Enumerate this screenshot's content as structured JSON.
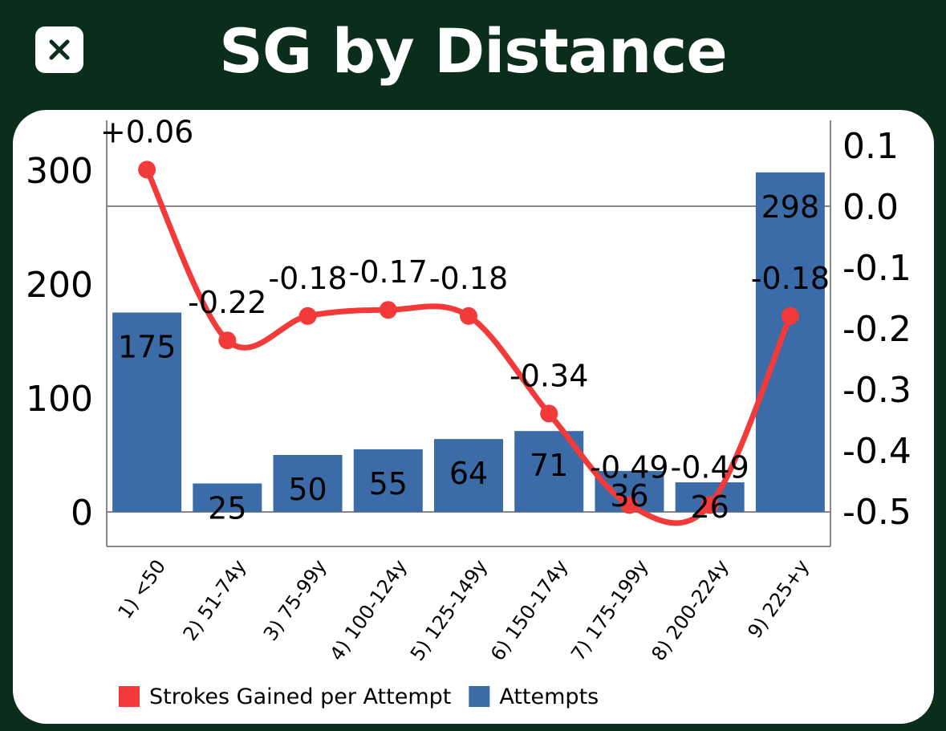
{
  "header": {
    "title": "SG by Distance",
    "close_icon": "close-icon"
  },
  "colors": {
    "background": "#0b2d1c",
    "bar": "#3b6ca7",
    "line": "#f23a3a",
    "axis": "#888888"
  },
  "chart_data": {
    "type": "bar",
    "categories": [
      "1) <50",
      "2) 51-74y",
      "3) 75-99y",
      "4) 100-124y",
      "5) 125-149y",
      "6) 150-174y",
      "7) 175-199y",
      "8) 200-224y",
      "9) 225+y"
    ],
    "series": [
      {
        "name": "Attempts",
        "type": "bar",
        "axis": "left",
        "values": [
          175,
          25,
          50,
          55,
          64,
          71,
          36,
          26,
          298
        ],
        "labels": [
          "175",
          "25",
          "50",
          "55",
          "64",
          "71",
          "36",
          "26",
          "298"
        ]
      },
      {
        "name": "Strokes Gained per Attempt",
        "type": "line",
        "axis": "right",
        "values": [
          0.06,
          -0.22,
          -0.18,
          -0.17,
          -0.18,
          -0.34,
          -0.49,
          -0.49,
          -0.18
        ],
        "labels": [
          "+0.06",
          "-0.22",
          "-0.18",
          "-0.17",
          "-0.18",
          "-0.34",
          "-0.49",
          "-0.49",
          "-0.18"
        ]
      }
    ],
    "y_left": {
      "ticks": [
        "300",
        "200",
        "100",
        "0"
      ],
      "tick_values": [
        300,
        200,
        100,
        0
      ],
      "range": [
        -30,
        300
      ]
    },
    "y_right": {
      "ticks": [
        "0.1",
        "0.0",
        "-0.1",
        "-0.2",
        "-0.3",
        "-0.4",
        "-0.5"
      ],
      "tick_values": [
        0.1,
        0.0,
        -0.1,
        -0.2,
        -0.3,
        -0.4,
        -0.5
      ],
      "range": [
        -0.56,
        0.1
      ]
    },
    "reference_lines": {
      "left_axis_zero": 0,
      "right_axis_zero": 0.0
    },
    "legend": {
      "placement": "bottom",
      "items": [
        {
          "label": "Strokes Gained per Attempt",
          "color": "#f23a3a"
        },
        {
          "label": "Attempts",
          "color": "#3b6ca7"
        }
      ]
    }
  }
}
